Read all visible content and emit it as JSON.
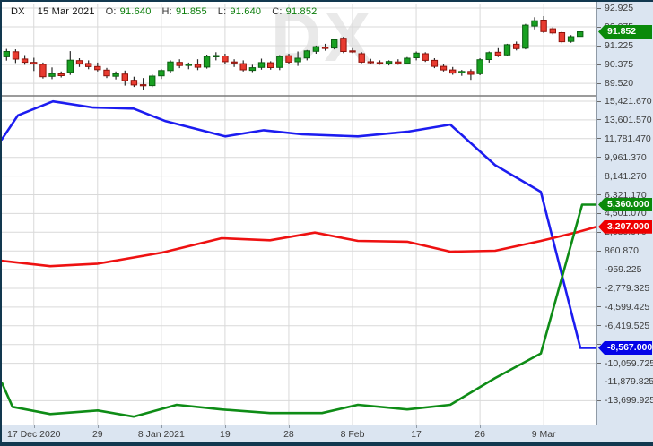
{
  "header": {
    "symbol": "DX",
    "date": "15 Mar 2021",
    "o_label": "O:",
    "o": "91.640",
    "h_label": "H:",
    "h": "91.855",
    "l_label": "L:",
    "l": "91.640",
    "c_label": "C:",
    "c": "91.852"
  },
  "watermark": "DX",
  "colors": {
    "window_border": "#12384f",
    "chart_bg": "#ffffff",
    "axis_bg": "#dbe5f1",
    "grid": "#d9d9d9",
    "pane_separator": "#7a7a7a",
    "candle_up_fill": "#18a021",
    "candle_up_stroke": "#0d5f13",
    "candle_down_fill": "#e83b30",
    "candle_down_stroke": "#8f120a",
    "wick": "#2a2a2a",
    "line_blue": "#1c1cf0",
    "line_red": "#ee1111",
    "line_green": "#0e8c16",
    "badge_green": "#0a8a0a",
    "badge_red": "#ee0000",
    "badge_blue": "#0404e8",
    "ohlc_value_color": "#0a7d0a"
  },
  "price_axis": {
    "labels": [
      {
        "text": "92.925",
        "value": 92.925
      },
      {
        "text": "92.075",
        "value": 92.075
      },
      {
        "text": "91.225",
        "value": 91.225
      },
      {
        "text": "90.375",
        "value": 90.375
      },
      {
        "text": "89.520",
        "value": 89.52
      }
    ]
  },
  "indicator_axis": {
    "labels": [
      {
        "text": "15,421.670",
        "value": 15421.67
      },
      {
        "text": "13,601.570",
        "value": 13601.57
      },
      {
        "text": "11,781.470",
        "value": 11781.47
      },
      {
        "text": "9,961.370",
        "value": 9961.37
      },
      {
        "text": "8,141.270",
        "value": 8141.27
      },
      {
        "text": "6,321.170",
        "value": 6321.17
      },
      {
        "text": "4,501.070",
        "value": 4501.07
      },
      {
        "text": "2,680.970",
        "value": 2680.97
      },
      {
        "text": "860.870",
        "value": 860.87
      },
      {
        "text": "-959.225",
        "value": -959.225
      },
      {
        "text": "-2,779.325",
        "value": -2779.325
      },
      {
        "text": "-4,599.425",
        "value": -4599.425
      },
      {
        "text": "-6,419.525",
        "value": -6419.525
      },
      {
        "text": "-8,239.625",
        "value": -8239.625
      },
      {
        "text": "-10,059.725",
        "value": -10059.725
      },
      {
        "text": "-11,879.825",
        "value": -11879.825
      },
      {
        "text": "-13,699.925",
        "value": -13699.925
      }
    ]
  },
  "badges": [
    {
      "text": "91.852",
      "value": 91.852,
      "pane": "price",
      "color": "#0a8a0a"
    },
    {
      "text": "5,360.000",
      "value": 5360,
      "pane": "indicator",
      "color": "#0a8a0a"
    },
    {
      "text": "3,207.000",
      "value": 3207,
      "pane": "indicator",
      "color": "#ee0000"
    },
    {
      "text": "-8,567.000",
      "value": -8567,
      "pane": "indicator",
      "color": "#0404e8"
    }
  ],
  "x_axis": {
    "ticks": [
      {
        "text": "17 Dec 2020",
        "candle_index": 3
      },
      {
        "text": "29",
        "candle_index": 10
      },
      {
        "text": "8 Jan 2021",
        "candle_index": 17
      },
      {
        "text": "19",
        "candle_index": 24
      },
      {
        "text": "28",
        "candle_index": 31
      },
      {
        "text": "8 Feb",
        "candle_index": 38
      },
      {
        "text": "17",
        "candle_index": 45
      },
      {
        "text": "26",
        "candle_index": 52
      },
      {
        "text": "9 Mar",
        "candle_index": 59
      }
    ]
  },
  "chart_data": {
    "type": "candlestick+line",
    "symbol": "DX",
    "timeframe": "daily",
    "price_pane": {
      "ylim": [
        89.2,
        92.925
      ],
      "grid": true
    },
    "indicator_pane": {
      "ylim": [
        -16100,
        15500
      ],
      "grid": true,
      "note": "three net-position lines, values sum to ~0; last values blue -8567, red 3207, green 5360"
    },
    "candles": {
      "dates": [
        "14 Dec",
        "15 Dec",
        "16 Dec",
        "17 Dec",
        "18 Dec",
        "21 Dec",
        "22 Dec",
        "23 Dec",
        "24 Dec",
        "28 Dec",
        "29 Dec",
        "30 Dec",
        "31 Dec",
        "4 Jan",
        "5 Jan",
        "6 Jan",
        "7 Jan",
        "8 Jan",
        "11 Jan",
        "12 Jan",
        "13 Jan",
        "14 Jan",
        "15 Jan",
        "18 Jan",
        "19 Jan",
        "20 Jan",
        "21 Jan",
        "22 Jan",
        "25 Jan",
        "26 Jan",
        "27 Jan",
        "28 Jan",
        "29 Jan",
        "1 Feb",
        "2 Feb",
        "3 Feb",
        "4 Feb",
        "5 Feb",
        "8 Feb",
        "9 Feb",
        "10 Feb",
        "11 Feb",
        "12 Feb",
        "15 Feb",
        "16 Feb",
        "17 Feb",
        "18 Feb",
        "19 Feb",
        "22 Feb",
        "23 Feb",
        "24 Feb",
        "25 Feb",
        "26 Feb",
        "1 Mar",
        "2 Mar",
        "3 Mar",
        "4 Mar",
        "5 Mar",
        "8 Mar",
        "9 Mar",
        "10 Mar",
        "11 Mar",
        "12 Mar",
        "15 Mar"
      ],
      "open": [
        90.72,
        90.95,
        90.62,
        90.47,
        90.38,
        89.84,
        89.95,
        90.02,
        90.55,
        90.42,
        90.28,
        90.12,
        89.84,
        89.94,
        89.66,
        89.46,
        89.42,
        89.86,
        90.1,
        90.47,
        90.33,
        90.37,
        90.26,
        90.72,
        90.76,
        90.49,
        90.41,
        90.11,
        90.24,
        90.45,
        90.24,
        90.77,
        90.5,
        90.67,
        90.97,
        91.16,
        91.12,
        91.56,
        90.99,
        90.86,
        90.5,
        90.46,
        90.42,
        90.49,
        90.43,
        90.68,
        90.86,
        90.56,
        90.29,
        90.13,
        89.99,
        90.06,
        89.96,
        90.6,
        90.93,
        90.81,
        91.29,
        91.11,
        92.11,
        92.38,
        91.99,
        91.81,
        91.42,
        91.64
      ],
      "high": [
        91.08,
        91.06,
        90.8,
        90.68,
        90.46,
        90.24,
        90.06,
        90.98,
        90.66,
        90.56,
        90.46,
        90.22,
        90.06,
        90.1,
        89.82,
        89.76,
        89.92,
        90.16,
        90.56,
        90.61,
        90.46,
        90.61,
        90.82,
        90.93,
        90.86,
        90.61,
        90.56,
        90.36,
        90.64,
        90.52,
        90.8,
        90.86,
        90.96,
        91.03,
        91.23,
        91.31,
        91.54,
        91.63,
        91.11,
        90.93,
        90.63,
        90.56,
        90.56,
        90.61,
        90.71,
        90.96,
        90.93,
        90.66,
        90.41,
        90.26,
        90.13,
        90.16,
        90.66,
        90.96,
        91.11,
        91.31,
        91.41,
        92.21,
        92.51,
        92.56,
        92.06,
        91.87,
        91.7,
        91.855
      ],
      "low": [
        90.55,
        90.44,
        90.36,
        90.08,
        89.74,
        89.71,
        89.79,
        89.9,
        90.26,
        90.16,
        90.06,
        89.76,
        89.7,
        89.42,
        89.36,
        89.21,
        89.35,
        89.72,
        90.0,
        90.21,
        90.16,
        90.12,
        90.19,
        90.56,
        90.41,
        90.26,
        90.06,
        90.03,
        90.14,
        90.14,
        90.12,
        90.41,
        90.31,
        90.56,
        90.86,
        91.0,
        91.06,
        90.89,
        90.89,
        90.43,
        90.39,
        90.36,
        90.33,
        90.36,
        90.39,
        90.56,
        90.49,
        90.21,
        90.06,
        89.91,
        89.86,
        89.68,
        89.89,
        90.46,
        90.71,
        90.76,
        91.01,
        91.06,
        91.96,
        91.79,
        91.73,
        91.33,
        91.36,
        91.64
      ],
      "close": [
        90.96,
        90.62,
        90.47,
        90.4,
        89.82,
        89.96,
        89.87,
        90.57,
        90.41,
        90.28,
        90.14,
        89.86,
        89.95,
        89.64,
        89.45,
        89.41,
        89.85,
        90.1,
        90.49,
        90.33,
        90.39,
        90.25,
        90.74,
        90.78,
        90.5,
        90.44,
        90.13,
        90.23,
        90.46,
        90.23,
        90.73,
        90.48,
        90.66,
        90.99,
        91.18,
        91.1,
        91.49,
        90.96,
        90.94,
        90.48,
        90.45,
        90.41,
        90.51,
        90.42,
        90.66,
        90.89,
        90.56,
        90.29,
        90.13,
        89.99,
        90.06,
        89.93,
        90.59,
        90.91,
        90.79,
        91.27,
        91.09,
        92.15,
        92.35,
        91.86,
        91.8,
        91.4,
        91.63,
        91.852
      ]
    },
    "series": [
      {
        "name": "blue-line",
        "color": "#1c1cf0",
        "x_unit": "px",
        "last_value": -8567,
        "points": [
          [
            0,
            11700
          ],
          [
            18,
            14050
          ],
          [
            57,
            15400
          ],
          [
            102,
            14800
          ],
          [
            147,
            14700
          ],
          [
            182,
            13500
          ],
          [
            209,
            12900
          ],
          [
            249,
            12000
          ],
          [
            292,
            12600
          ],
          [
            335,
            12200
          ],
          [
            397,
            12000
          ],
          [
            452,
            12450
          ],
          [
            500,
            13150
          ],
          [
            550,
            9200
          ],
          [
            601,
            6600
          ],
          [
            645,
            -8567
          ],
          [
            663,
            -8567
          ]
        ]
      },
      {
        "name": "red-line",
        "color": "#ee1111",
        "x_unit": "px",
        "last_value": 3207,
        "points": [
          [
            0,
            -100
          ],
          [
            54,
            -620
          ],
          [
            107,
            -380
          ],
          [
            179,
            700
          ],
          [
            245,
            2100
          ],
          [
            299,
            1900
          ],
          [
            349,
            2650
          ],
          [
            397,
            1840
          ],
          [
            452,
            1760
          ],
          [
            500,
            790
          ],
          [
            550,
            880
          ],
          [
            601,
            1840
          ],
          [
            642,
            2700
          ],
          [
            663,
            3207
          ]
        ]
      },
      {
        "name": "green-line",
        "color": "#0e8c16",
        "x_unit": "px",
        "last_value": 5360,
        "points": [
          [
            0,
            -11950
          ],
          [
            12,
            -14300
          ],
          [
            54,
            -15000
          ],
          [
            107,
            -14650
          ],
          [
            147,
            -15250
          ],
          [
            195,
            -14100
          ],
          [
            245,
            -14550
          ],
          [
            299,
            -14900
          ],
          [
            357,
            -14900
          ],
          [
            397,
            -14100
          ],
          [
            452,
            -14550
          ],
          [
            500,
            -14100
          ],
          [
            550,
            -11500
          ],
          [
            601,
            -9100
          ],
          [
            647,
            5360
          ],
          [
            663,
            5360
          ]
        ]
      }
    ]
  }
}
